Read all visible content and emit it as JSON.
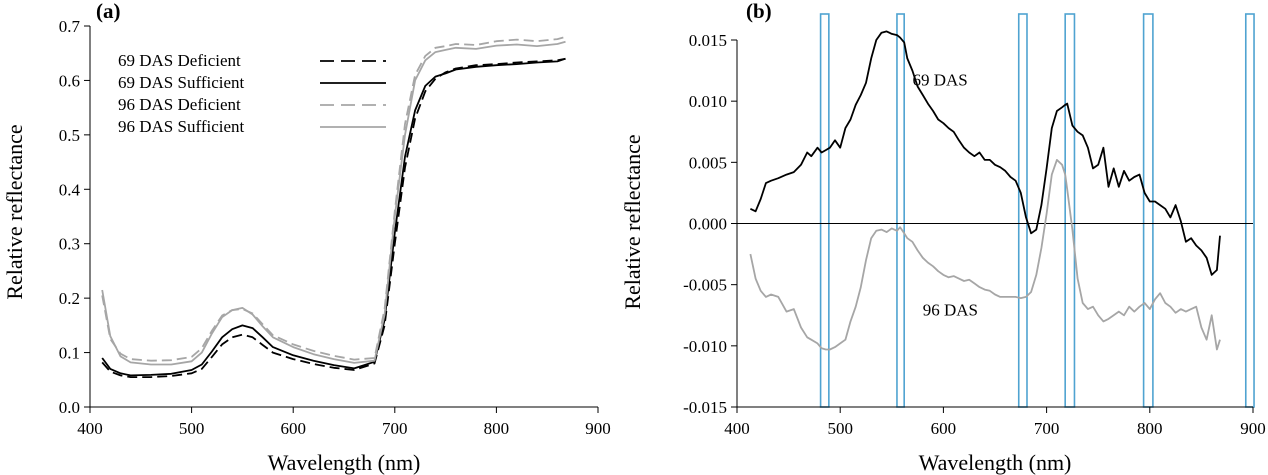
{
  "chart_data": [
    {
      "panel_label": "(a)",
      "type": "line",
      "xlabel": "Wavelength (nm)",
      "ylabel": "Relative reflectance",
      "xlim": [
        400,
        900
      ],
      "ylim": [
        0,
        0.7
      ],
      "xticks": [
        "400",
        "500",
        "600",
        "700",
        "800",
        "900"
      ],
      "yticks": [
        "0.0",
        "0.1",
        "0.2",
        "0.3",
        "0.4",
        "0.5",
        "0.6",
        "0.7"
      ],
      "grid": false,
      "legend_position": "top-left",
      "colors": {
        "black": "#000000",
        "gray": "#a6a6a6"
      },
      "series": [
        {
          "name": "69 DAS Deficient",
          "color": "#000000",
          "dashed": true,
          "x": [
            412,
            420,
            430,
            440,
            460,
            480,
            500,
            510,
            520,
            530,
            540,
            550,
            560,
            570,
            580,
            600,
            620,
            640,
            660,
            680,
            690,
            700,
            710,
            720,
            730,
            740,
            750,
            760,
            780,
            800,
            820,
            840,
            860,
            868
          ],
          "y": [
            0.082,
            0.065,
            0.058,
            0.055,
            0.055,
            0.057,
            0.062,
            0.07,
            0.092,
            0.115,
            0.128,
            0.133,
            0.128,
            0.114,
            0.1,
            0.088,
            0.079,
            0.072,
            0.068,
            0.08,
            0.15,
            0.3,
            0.44,
            0.53,
            0.58,
            0.603,
            0.615,
            0.622,
            0.628,
            0.63,
            0.633,
            0.635,
            0.637,
            0.64
          ]
        },
        {
          "name": "69 DAS Sufficient",
          "color": "#000000",
          "dashed": false,
          "x": [
            412,
            420,
            430,
            440,
            460,
            480,
            500,
            510,
            520,
            530,
            540,
            550,
            560,
            570,
            580,
            600,
            620,
            640,
            660,
            680,
            690,
            700,
            710,
            720,
            730,
            740,
            750,
            760,
            780,
            800,
            820,
            840,
            860,
            868
          ],
          "y": [
            0.09,
            0.07,
            0.062,
            0.058,
            0.059,
            0.061,
            0.068,
            0.078,
            0.102,
            0.128,
            0.143,
            0.15,
            0.145,
            0.128,
            0.11,
            0.095,
            0.085,
            0.077,
            0.071,
            0.083,
            0.16,
            0.32,
            0.46,
            0.545,
            0.59,
            0.607,
            0.613,
            0.62,
            0.625,
            0.628,
            0.63,
            0.633,
            0.635,
            0.64
          ]
        },
        {
          "name": "96 DAS Deficient",
          "color": "#a6a6a6",
          "dashed": true,
          "x": [
            412,
            420,
            430,
            440,
            460,
            480,
            500,
            510,
            520,
            530,
            540,
            550,
            560,
            570,
            580,
            600,
            620,
            640,
            660,
            680,
            690,
            700,
            710,
            720,
            730,
            740,
            750,
            760,
            780,
            800,
            820,
            840,
            860,
            868
          ],
          "y": [
            0.205,
            0.125,
            0.098,
            0.088,
            0.085,
            0.086,
            0.092,
            0.108,
            0.14,
            0.168,
            0.178,
            0.18,
            0.172,
            0.152,
            0.132,
            0.115,
            0.103,
            0.094,
            0.087,
            0.09,
            0.18,
            0.36,
            0.52,
            0.61,
            0.645,
            0.66,
            0.663,
            0.667,
            0.665,
            0.672,
            0.675,
            0.672,
            0.676,
            0.68
          ]
        },
        {
          "name": "96 DAS Sufficient",
          "color": "#a6a6a6",
          "dashed": false,
          "x": [
            412,
            420,
            430,
            440,
            460,
            480,
            500,
            510,
            520,
            530,
            540,
            550,
            560,
            570,
            580,
            600,
            620,
            640,
            660,
            680,
            690,
            700,
            710,
            720,
            730,
            740,
            750,
            760,
            780,
            800,
            820,
            840,
            860,
            868
          ],
          "y": [
            0.215,
            0.13,
            0.093,
            0.082,
            0.078,
            0.078,
            0.084,
            0.1,
            0.135,
            0.165,
            0.178,
            0.182,
            0.17,
            0.148,
            0.128,
            0.11,
            0.097,
            0.088,
            0.081,
            0.085,
            0.17,
            0.35,
            0.5,
            0.6,
            0.637,
            0.652,
            0.656,
            0.66,
            0.658,
            0.664,
            0.666,
            0.663,
            0.667,
            0.671
          ]
        }
      ]
    },
    {
      "panel_label": "(b)",
      "type": "line",
      "xlabel": "Wavelength (nm)",
      "ylabel": "Relative reflectance",
      "xlim": [
        400,
        900
      ],
      "ylim": [
        -0.015,
        0.015
      ],
      "xticks": [
        "400",
        "500",
        "600",
        "700",
        "800",
        "900"
      ],
      "yticks": [
        "-0.015",
        "-0.010",
        "-0.005",
        "0.000",
        "0.005",
        "0.010",
        "0.015"
      ],
      "grid": false,
      "zero_line": true,
      "band_color": "#4fa3d1",
      "highlighted_bands": [
        [
          481,
          489
        ],
        [
          555,
          562
        ],
        [
          673,
          681
        ],
        [
          718,
          727
        ],
        [
          794,
          803
        ],
        [
          893,
          901
        ]
      ],
      "annotations": [
        {
          "text": "69 DAS",
          "x": 570,
          "y": 0.0113
        },
        {
          "text": "96 DAS",
          "x": 580,
          "y": -0.0075
        }
      ],
      "series": [
        {
          "label": "69 DAS",
          "color": "#000000",
          "x": [
            413,
            418,
            423,
            428,
            433,
            440,
            448,
            455,
            462,
            468,
            472,
            478,
            482,
            486,
            490,
            495,
            500,
            505,
            510,
            515,
            520,
            525,
            530,
            535,
            540,
            545,
            550,
            555,
            558,
            562,
            565,
            570,
            575,
            580,
            585,
            590,
            595,
            600,
            605,
            610,
            615,
            620,
            625,
            630,
            635,
            640,
            645,
            650,
            655,
            660,
            665,
            670,
            675,
            680,
            685,
            690,
            695,
            700,
            705,
            710,
            715,
            718,
            720,
            725,
            730,
            735,
            740,
            745,
            750,
            755,
            760,
            765,
            770,
            775,
            780,
            785,
            790,
            795,
            800,
            805,
            810,
            815,
            820,
            825,
            830,
            835,
            840,
            845,
            850,
            855,
            860,
            865,
            868
          ],
          "y": [
            0.0012,
            0.001,
            0.002,
            0.0033,
            0.0035,
            0.0037,
            0.004,
            0.0042,
            0.0048,
            0.0058,
            0.0055,
            0.0062,
            0.0058,
            0.006,
            0.0062,
            0.0068,
            0.0062,
            0.0078,
            0.0085,
            0.0097,
            0.0105,
            0.0115,
            0.0135,
            0.015,
            0.0156,
            0.0157,
            0.0155,
            0.0154,
            0.0152,
            0.0148,
            0.0135,
            0.0125,
            0.0112,
            0.0105,
            0.0098,
            0.0092,
            0.0085,
            0.0082,
            0.0078,
            0.0075,
            0.0068,
            0.0062,
            0.0058,
            0.0055,
            0.0058,
            0.0052,
            0.0052,
            0.0048,
            0.0046,
            0.0043,
            0.0038,
            0.0035,
            0.0025,
            0.0005,
            -0.0008,
            -0.0005,
            0.0015,
            0.0045,
            0.0078,
            0.0092,
            0.0095,
            0.0097,
            0.0098,
            0.008,
            0.0075,
            0.0072,
            0.0062,
            0.0045,
            0.0048,
            0.0062,
            0.003,
            0.0045,
            0.003,
            0.0043,
            0.0035,
            0.0038,
            0.004,
            0.0025,
            0.0018,
            0.0018,
            0.0015,
            0.0012,
            0.0005,
            0.0015,
            0.0002,
            -0.0015,
            -0.0012,
            -0.0018,
            -0.0022,
            -0.0028,
            -0.0042,
            -0.0038,
            -0.001
          ]
        },
        {
          "label": "96 DAS",
          "color": "#a6a6a6",
          "x": [
            413,
            418,
            423,
            428,
            433,
            440,
            448,
            455,
            462,
            468,
            472,
            478,
            482,
            486,
            490,
            495,
            500,
            505,
            510,
            515,
            520,
            525,
            530,
            535,
            540,
            545,
            550,
            555,
            558,
            562,
            565,
            570,
            575,
            580,
            585,
            590,
            595,
            600,
            605,
            610,
            615,
            620,
            625,
            630,
            635,
            640,
            645,
            650,
            655,
            660,
            665,
            670,
            675,
            680,
            685,
            690,
            695,
            700,
            705,
            710,
            715,
            718,
            720,
            725,
            730,
            735,
            740,
            745,
            750,
            755,
            760,
            765,
            770,
            775,
            780,
            785,
            790,
            795,
            800,
            805,
            810,
            815,
            820,
            825,
            830,
            835,
            840,
            845,
            850,
            855,
            860,
            865,
            868
          ],
          "y": [
            -0.0025,
            -0.0045,
            -0.0055,
            -0.006,
            -0.0058,
            -0.006,
            -0.0072,
            -0.007,
            -0.0085,
            -0.0093,
            -0.0095,
            -0.0098,
            -0.0102,
            -0.0103,
            -0.0103,
            -0.0101,
            -0.0098,
            -0.0095,
            -0.008,
            -0.0068,
            -0.0052,
            -0.003,
            -0.0012,
            -0.0006,
            -0.0005,
            -0.0007,
            -0.0004,
            -0.0006,
            -0.0003,
            -0.0008,
            -0.0012,
            -0.0015,
            -0.0022,
            -0.0028,
            -0.0032,
            -0.0035,
            -0.0039,
            -0.0042,
            -0.0044,
            -0.0043,
            -0.0045,
            -0.0047,
            -0.0046,
            -0.0049,
            -0.0052,
            -0.0054,
            -0.0055,
            -0.0058,
            -0.006,
            -0.006,
            -0.006,
            -0.006,
            -0.0061,
            -0.006,
            -0.0056,
            -0.0042,
            -0.002,
            0.0008,
            0.004,
            0.0052,
            0.0048,
            0.004,
            0.0028,
            -0.0005,
            -0.0045,
            -0.0065,
            -0.007,
            -0.0068,
            -0.0075,
            -0.008,
            -0.0078,
            -0.0075,
            -0.0072,
            -0.0075,
            -0.0068,
            -0.0072,
            -0.0068,
            -0.0065,
            -0.007,
            -0.0062,
            -0.0057,
            -0.0065,
            -0.0068,
            -0.0073,
            -0.007,
            -0.0072,
            -0.007,
            -0.0068,
            -0.0085,
            -0.0095,
            -0.0075,
            -0.0103,
            -0.0095
          ]
        }
      ]
    }
  ]
}
